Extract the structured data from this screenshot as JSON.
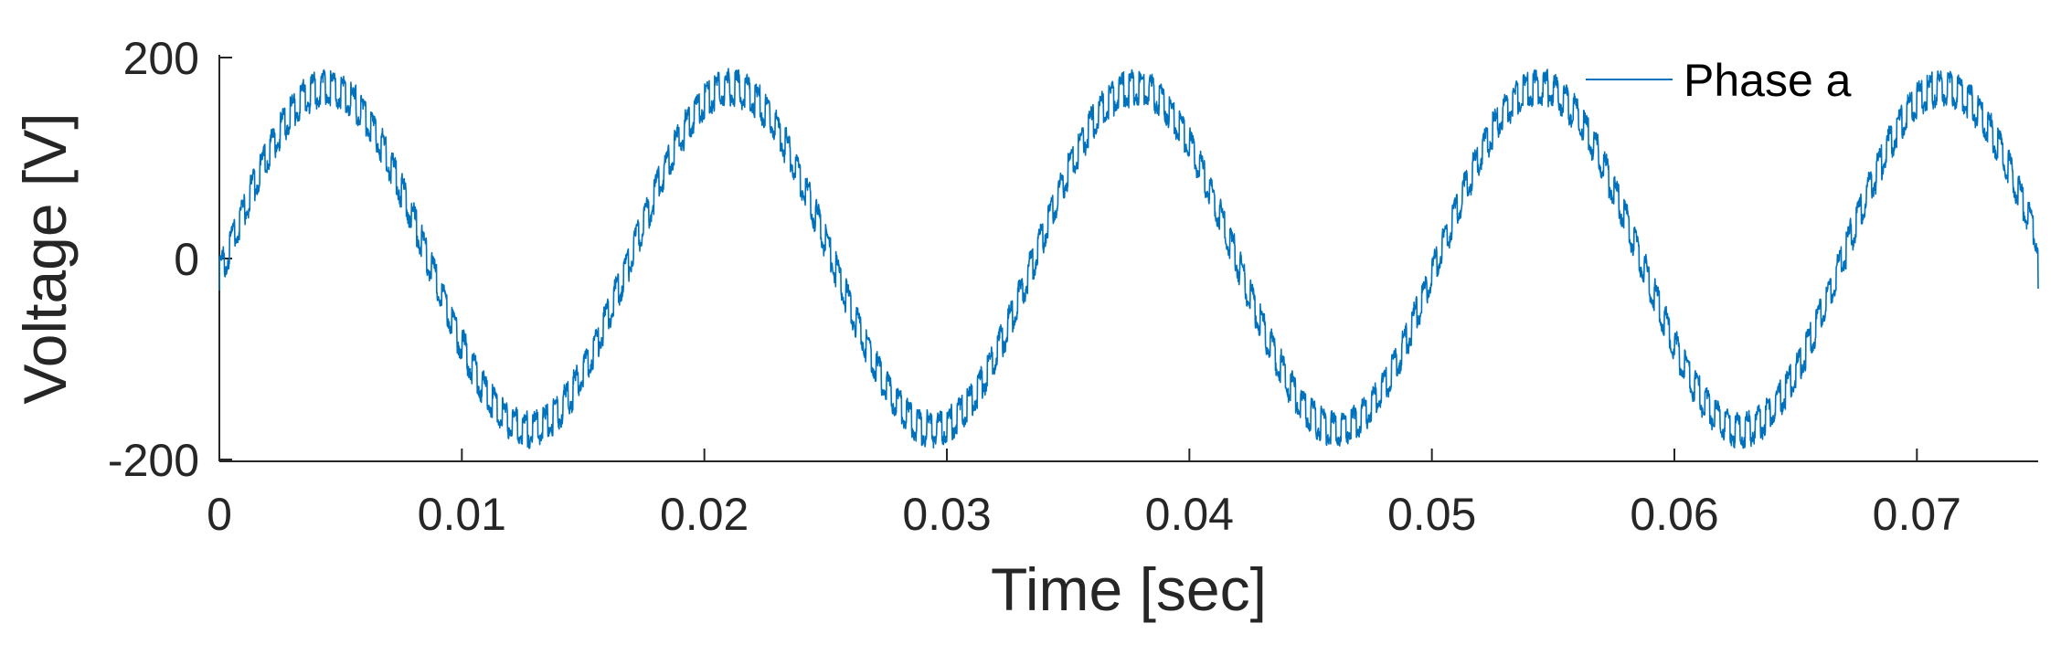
{
  "chart_data": {
    "type": "line",
    "title": "",
    "xlabel": "Time [sec]",
    "ylabel": "Voltage [V]",
    "xlim": [
      0,
      0.075
    ],
    "ylim": [
      -200,
      200
    ],
    "x_ticks": [
      0,
      0.01,
      0.02,
      0.03,
      0.04,
      0.05,
      0.06,
      0.07
    ],
    "x_tick_labels": [
      "0",
      "0.01",
      "0.02",
      "0.03",
      "0.04",
      "0.05",
      "0.06",
      "0.07"
    ],
    "y_ticks": [
      -200,
      0,
      200
    ],
    "y_tick_labels": [
      "-200",
      "0",
      "200"
    ],
    "grid": false,
    "legend_position": "top-right",
    "series": [
      {
        "name": "Phase a",
        "color": "#0072BD",
        "waveform": "noisy sinusoid",
        "frequency_hz": 60,
        "amplitude_v": 170,
        "phase_offset_rad": -0.1,
        "ripple_amplitude_v": 30,
        "x_end": 0.075,
        "y_end": -30
      }
    ]
  }
}
